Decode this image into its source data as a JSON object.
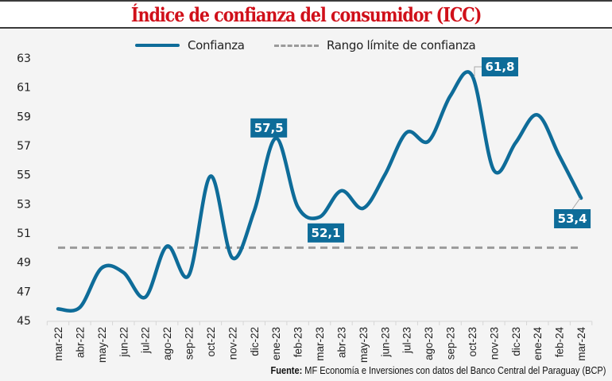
{
  "header": {
    "title": "Índice de confianza del consumidor (ICC)"
  },
  "legend": {
    "items": [
      {
        "label": "Confianza",
        "style": "solid",
        "color": "#0e6c99"
      },
      {
        "label": "Rango límite de confianza",
        "style": "dashed",
        "color": "#9a9a9a"
      }
    ]
  },
  "source": {
    "prefix": "Fuente:",
    "text": " MF Economía e Inversiones con datos del Banco Central del Paraguay (BCP)"
  },
  "chart_data": {
    "type": "line",
    "title": "Índice de confianza del consumidor (ICC)",
    "xlabel": "",
    "ylabel": "",
    "categories": [
      "mar-22",
      "abr-22",
      "may-22",
      "jun-22",
      "jul-22",
      "ago-22",
      "sep-22",
      "oct-22",
      "nov-22",
      "dic-22",
      "ene-23",
      "feb-23",
      "mar-23",
      "abr-23",
      "may-23",
      "jun-23",
      "jul-23",
      "ago-23",
      "sep-23",
      "oct-23",
      "nov-23",
      "dic-23",
      "ene-24",
      "feb-24",
      "mar-24"
    ],
    "series": [
      {
        "name": "Confianza",
        "color": "#0e6c99",
        "smooth": true,
        "values": [
          45.8,
          45.9,
          48.6,
          48.3,
          46.6,
          50.1,
          48.1,
          54.9,
          49.3,
          52.5,
          57.5,
          52.8,
          52.1,
          53.9,
          52.7,
          55.0,
          57.9,
          57.3,
          60.4,
          61.8,
          55.3,
          57.2,
          59.1,
          56.3,
          53.4
        ]
      },
      {
        "name": "Rango límite de confianza",
        "color": "#9a9a9a",
        "dashed": true,
        "values": [
          50,
          50,
          50,
          50,
          50,
          50,
          50,
          50,
          50,
          50,
          50,
          50,
          50,
          50,
          50,
          50,
          50,
          50,
          50,
          50,
          50,
          50,
          50,
          50,
          50
        ]
      }
    ],
    "yticks": [
      45,
      47,
      49,
      51,
      53,
      55,
      57,
      59,
      61,
      63
    ],
    "ylim": [
      45,
      63
    ],
    "grid": false,
    "legend_position": "top-center",
    "annotations": [
      {
        "category": "ene-23",
        "value": 57.5,
        "label": "57,5",
        "placement": "above"
      },
      {
        "category": "mar-23",
        "value": 52.1,
        "label": "52,1",
        "placement": "below"
      },
      {
        "category": "oct-23",
        "value": 61.8,
        "label": "61,8",
        "placement": "right-leader"
      },
      {
        "category": "mar-24",
        "value": 53.4,
        "label": "53,4",
        "placement": "below-leader"
      }
    ],
    "annotation_color": "#0e6c99"
  }
}
